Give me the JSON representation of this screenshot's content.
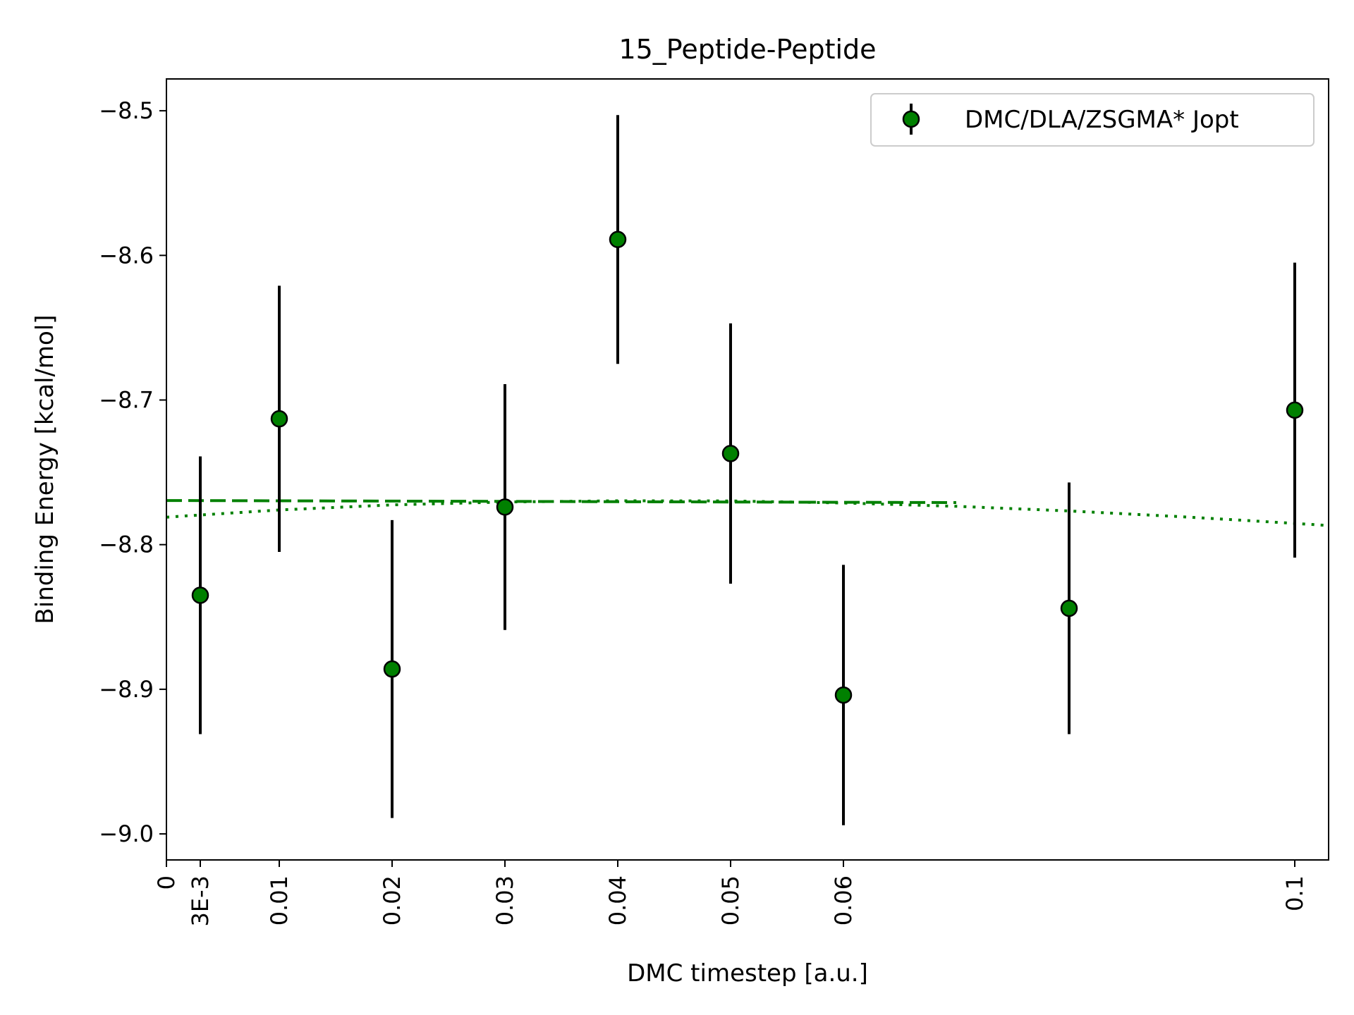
{
  "chart_data": {
    "type": "scatter",
    "title": "15_Peptide-Peptide",
    "xlabel": "DMC timestep [a.u.]",
    "ylabel": "Binding Energy [kcal/mol]",
    "xlim": [
      0,
      0.103
    ],
    "ylim": [
      -9.018,
      -8.478
    ],
    "x_ticks": [
      {
        "value": 0,
        "label": "0"
      },
      {
        "value": 0.003,
        "label": "3E-3"
      },
      {
        "value": 0.01,
        "label": "0.01"
      },
      {
        "value": 0.02,
        "label": "0.02"
      },
      {
        "value": 0.03,
        "label": "0.03"
      },
      {
        "value": 0.04,
        "label": "0.04"
      },
      {
        "value": 0.05,
        "label": "0.05"
      },
      {
        "value": 0.06,
        "label": "0.06"
      },
      {
        "value": 0.1,
        "label": "0.1"
      }
    ],
    "y_ticks": [
      {
        "value": -8.5,
        "label": "−8.5"
      },
      {
        "value": -8.6,
        "label": "−8.6"
      },
      {
        "value": -8.7,
        "label": "−8.7"
      },
      {
        "value": -8.8,
        "label": "−8.8"
      },
      {
        "value": -8.9,
        "label": "−8.9"
      },
      {
        "value": -9.0,
        "label": "−9.0"
      }
    ],
    "grid": false,
    "legend_position": "top-right",
    "series": [
      {
        "name": "DMC/DLA/ZSGMA* Jopt",
        "color": "#008000",
        "edge_color": "#000000",
        "error_color": "#000000",
        "points": [
          {
            "x": 0.003,
            "y": -8.835,
            "err": 0.096
          },
          {
            "x": 0.01,
            "y": -8.713,
            "err": 0.092
          },
          {
            "x": 0.02,
            "y": -8.886,
            "err": 0.103
          },
          {
            "x": 0.03,
            "y": -8.774,
            "err": 0.085
          },
          {
            "x": 0.04,
            "y": -8.589,
            "err": 0.086
          },
          {
            "x": 0.05,
            "y": -8.737,
            "err": 0.09
          },
          {
            "x": 0.06,
            "y": -8.904,
            "err": 0.09
          },
          {
            "x": 0.08,
            "y": -8.844,
            "err": 0.087
          },
          {
            "x": 0.1,
            "y": -8.707,
            "err": 0.102
          }
        ]
      }
    ],
    "fit_lines": [
      {
        "style": "dashed",
        "color": "#008000",
        "x": [
          0,
          0.01,
          0.02,
          0.03,
          0.04,
          0.05,
          0.06,
          0.07
        ],
        "y": [
          -8.7695,
          -8.7697,
          -8.7699,
          -8.7701,
          -8.7703,
          -8.7705,
          -8.7707,
          -8.7709
        ]
      },
      {
        "style": "dotted",
        "color": "#008000",
        "x": [
          0,
          0.01,
          0.02,
          0.03,
          0.04,
          0.05,
          0.06,
          0.07,
          0.08,
          0.09,
          0.1,
          0.103
        ],
        "y": [
          -8.781,
          -8.776,
          -8.7725,
          -8.7705,
          -8.7697,
          -8.7698,
          -8.7712,
          -8.7735,
          -8.7767,
          -8.7807,
          -8.7853,
          -8.7868
        ]
      }
    ]
  }
}
